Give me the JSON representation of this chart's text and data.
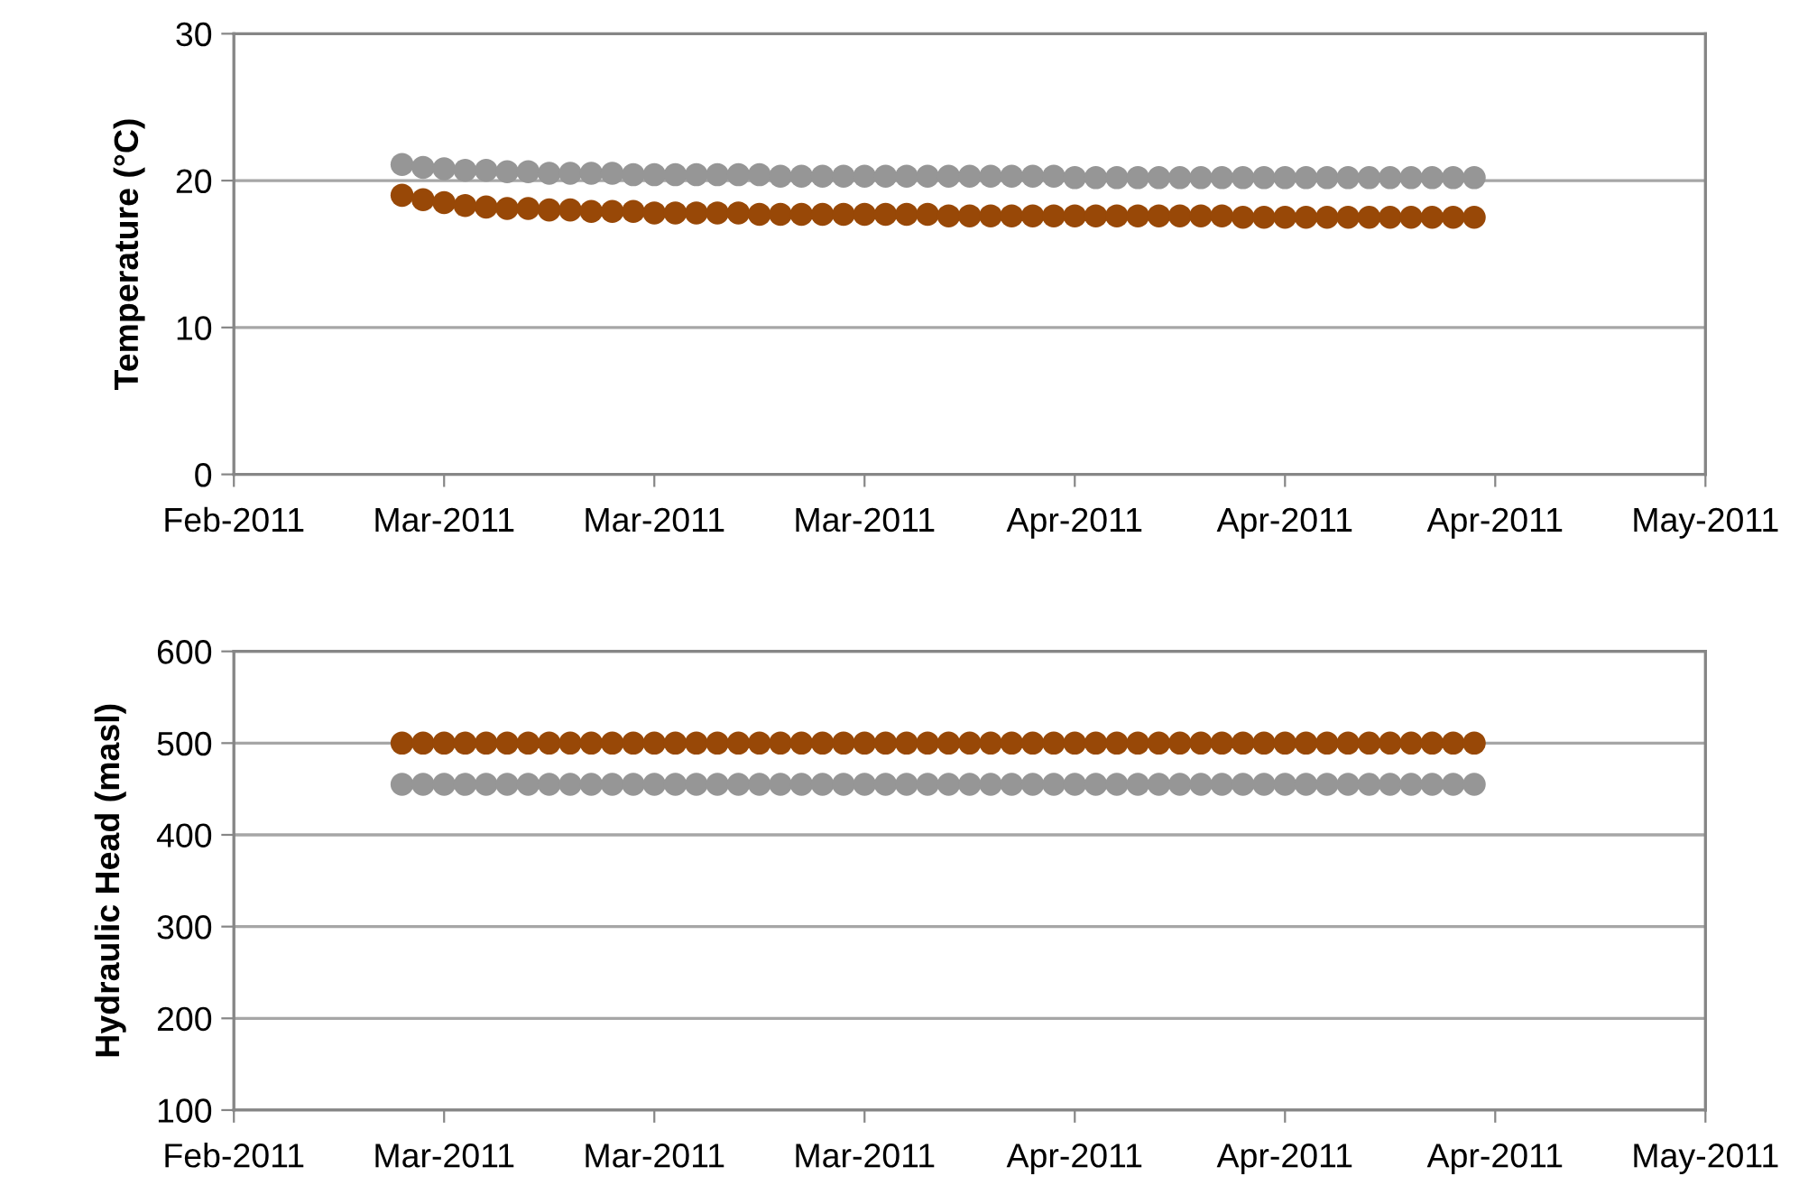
{
  "chart_data": [
    {
      "type": "scatter",
      "ylabel": "Temperature (°C)",
      "marker": "circle",
      "grid": "y",
      "legend": false,
      "x": [
        "2011-03-02",
        "2011-03-03",
        "2011-03-04",
        "2011-03-05",
        "2011-03-06",
        "2011-03-07",
        "2011-03-08",
        "2011-03-09",
        "2011-03-10",
        "2011-03-11",
        "2011-03-12",
        "2011-03-13",
        "2011-03-14",
        "2011-03-15",
        "2011-03-16",
        "2011-03-17",
        "2011-03-18",
        "2011-03-19",
        "2011-03-20",
        "2011-03-21",
        "2011-03-22",
        "2011-03-23",
        "2011-03-24",
        "2011-03-25",
        "2011-03-26",
        "2011-03-27",
        "2011-03-28",
        "2011-03-29",
        "2011-03-30",
        "2011-03-31",
        "2011-04-01",
        "2011-04-02",
        "2011-04-03",
        "2011-04-04",
        "2011-04-05",
        "2011-04-06",
        "2011-04-07",
        "2011-04-08",
        "2011-04-09",
        "2011-04-10",
        "2011-04-11",
        "2011-04-12",
        "2011-04-13",
        "2011-04-14",
        "2011-04-15",
        "2011-04-16",
        "2011-04-17",
        "2011-04-18",
        "2011-04-19",
        "2011-04-20",
        "2011-04-21",
        "2011-04-22"
      ],
      "series": [
        {
          "color": "#969696",
          "values": [
            21.1,
            20.9,
            20.8,
            20.7,
            20.7,
            20.6,
            20.6,
            20.5,
            20.5,
            20.5,
            20.5,
            20.4,
            20.4,
            20.4,
            20.4,
            20.4,
            20.4,
            20.4,
            20.3,
            20.3,
            20.3,
            20.3,
            20.3,
            20.3,
            20.3,
            20.3,
            20.3,
            20.3,
            20.3,
            20.3,
            20.3,
            20.3,
            20.2,
            20.2,
            20.2,
            20.2,
            20.2,
            20.2,
            20.2,
            20.2,
            20.2,
            20.2,
            20.2,
            20.2,
            20.2,
            20.2,
            20.2,
            20.2,
            20.2,
            20.2,
            20.2,
            20.2
          ]
        },
        {
          "color": "#984807",
          "values": [
            19.0,
            18.7,
            18.5,
            18.3,
            18.2,
            18.1,
            18.1,
            18.0,
            18.0,
            17.9,
            17.9,
            17.9,
            17.8,
            17.8,
            17.8,
            17.8,
            17.8,
            17.7,
            17.7,
            17.7,
            17.7,
            17.7,
            17.7,
            17.7,
            17.7,
            17.7,
            17.6,
            17.6,
            17.6,
            17.6,
            17.6,
            17.6,
            17.6,
            17.6,
            17.6,
            17.6,
            17.6,
            17.6,
            17.6,
            17.6,
            17.5,
            17.5,
            17.5,
            17.5,
            17.5,
            17.5,
            17.5,
            17.5,
            17.5,
            17.5,
            17.5,
            17.5
          ]
        }
      ],
      "ylim": [
        0,
        30
      ],
      "yticks": [
        0,
        10,
        20,
        30
      ],
      "xlim": [
        "2011-02-22",
        "2011-05-03"
      ],
      "xticks": [
        {
          "value": "2011-02-22",
          "label": "Feb-2011"
        },
        {
          "value": "2011-03-04",
          "label": "Mar-2011"
        },
        {
          "value": "2011-03-14",
          "label": "Mar-2011"
        },
        {
          "value": "2011-03-24",
          "label": "Mar-2011"
        },
        {
          "value": "2011-04-03",
          "label": "Apr-2011"
        },
        {
          "value": "2011-04-13",
          "label": "Apr-2011"
        },
        {
          "value": "2011-04-23",
          "label": "Apr-2011"
        },
        {
          "value": "2011-05-03",
          "label": "May-2011"
        }
      ]
    },
    {
      "type": "scatter",
      "ylabel": "Hydraulic Head (masl)",
      "marker": "circle",
      "grid": "y",
      "legend": false,
      "x": [
        "2011-03-02",
        "2011-03-03",
        "2011-03-04",
        "2011-03-05",
        "2011-03-06",
        "2011-03-07",
        "2011-03-08",
        "2011-03-09",
        "2011-03-10",
        "2011-03-11",
        "2011-03-12",
        "2011-03-13",
        "2011-03-14",
        "2011-03-15",
        "2011-03-16",
        "2011-03-17",
        "2011-03-18",
        "2011-03-19",
        "2011-03-20",
        "2011-03-21",
        "2011-03-22",
        "2011-03-23",
        "2011-03-24",
        "2011-03-25",
        "2011-03-26",
        "2011-03-27",
        "2011-03-28",
        "2011-03-29",
        "2011-03-30",
        "2011-03-31",
        "2011-04-01",
        "2011-04-02",
        "2011-04-03",
        "2011-04-04",
        "2011-04-05",
        "2011-04-06",
        "2011-04-07",
        "2011-04-08",
        "2011-04-09",
        "2011-04-10",
        "2011-04-11",
        "2011-04-12",
        "2011-04-13",
        "2011-04-14",
        "2011-04-15",
        "2011-04-16",
        "2011-04-17",
        "2011-04-18",
        "2011-04-19",
        "2011-04-20",
        "2011-04-21",
        "2011-04-22"
      ],
      "series": [
        {
          "color": "#984807",
          "values": [
            500,
            500,
            500,
            500,
            500,
            500,
            500,
            500,
            500,
            500,
            500,
            500,
            500,
            500,
            500,
            500,
            500,
            500,
            500,
            500,
            500,
            500,
            500,
            500,
            500,
            500,
            500,
            500,
            500,
            500,
            500,
            500,
            500,
            500,
            500,
            500,
            500,
            500,
            500,
            500,
            500,
            500,
            500,
            500,
            500,
            500,
            500,
            500,
            500,
            500,
            500,
            500
          ]
        },
        {
          "color": "#969696",
          "values": [
            455,
            455,
            455,
            455,
            455,
            455,
            455,
            455,
            455,
            455,
            455,
            455,
            455,
            455,
            455,
            455,
            455,
            455,
            455,
            455,
            455,
            455,
            455,
            455,
            455,
            455,
            455,
            455,
            455,
            455,
            455,
            455,
            455,
            455,
            455,
            455,
            455,
            455,
            455,
            455,
            455,
            455,
            455,
            455,
            455,
            455,
            455,
            455,
            455,
            455,
            455,
            455
          ]
        }
      ],
      "ylim": [
        100,
        600
      ],
      "yticks": [
        100,
        200,
        300,
        400,
        500,
        600
      ],
      "xlim": [
        "2011-02-22",
        "2011-05-03"
      ],
      "xticks": [
        {
          "value": "2011-02-22",
          "label": "Feb-2011"
        },
        {
          "value": "2011-03-04",
          "label": "Mar-2011"
        },
        {
          "value": "2011-03-14",
          "label": "Mar-2011"
        },
        {
          "value": "2011-03-24",
          "label": "Mar-2011"
        },
        {
          "value": "2011-04-03",
          "label": "Apr-2011"
        },
        {
          "value": "2011-04-13",
          "label": "Apr-2011"
        },
        {
          "value": "2011-04-23",
          "label": "Apr-2011"
        },
        {
          "value": "2011-05-03",
          "label": "May-2011"
        }
      ]
    }
  ]
}
